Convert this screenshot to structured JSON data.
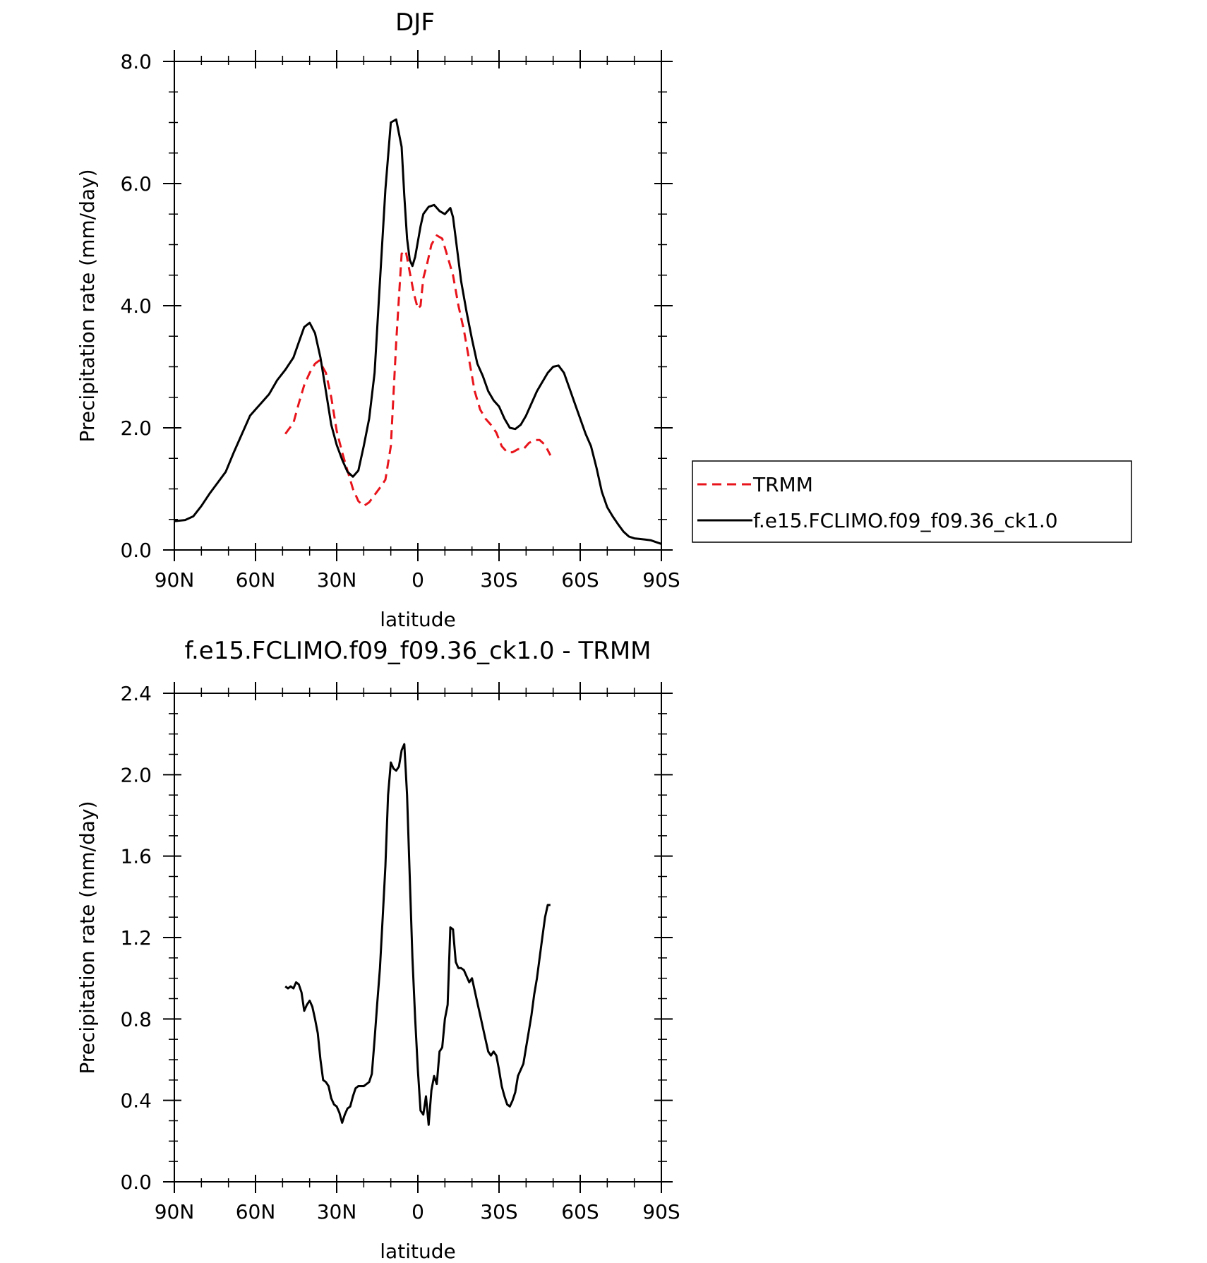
{
  "chart_data": [
    {
      "type": "line",
      "title": "DJF",
      "xlabel": "latitude",
      "ylabel": "Precipitation rate (mm/day)",
      "ylim": [
        0,
        8
      ],
      "xlim": [
        90,
        -90
      ],
      "y_ticks": [
        "0.0",
        "2.0",
        "4.0",
        "6.0",
        "8.0"
      ],
      "x_ticks": [
        "90N",
        "60N",
        "30N",
        "0",
        "30S",
        "60S",
        "90S"
      ],
      "x_tick_values": [
        90,
        60,
        30,
        0,
        -30,
        -60,
        -90
      ],
      "legend": {
        "placement": "right"
      },
      "series": [
        {
          "name": "TRMM",
          "color": "#e8141b",
          "style": "dashed",
          "x": [
            49,
            46,
            44,
            42,
            40,
            38,
            36.5,
            34,
            32,
            30,
            28,
            26,
            24,
            22,
            20,
            18,
            16,
            14,
            12,
            10,
            8,
            6,
            4.5,
            3,
            1.5,
            0,
            -1,
            -2,
            -3.5,
            -5,
            -7,
            -9,
            -11,
            -13,
            -15,
            -17,
            -19,
            -21,
            -23,
            -25,
            -27,
            -29,
            -31,
            -33,
            -35,
            -37,
            -39,
            -41,
            -43,
            -45,
            -47,
            -49
          ],
          "y": [
            1.9,
            2.08,
            2.4,
            2.7,
            2.9,
            3.05,
            3.1,
            2.9,
            2.5,
            1.95,
            1.6,
            1.3,
            1.0,
            0.8,
            0.72,
            0.78,
            0.9,
            1.02,
            1.15,
            1.7,
            3.4,
            4.85,
            4.9,
            4.55,
            4.2,
            3.95,
            4.0,
            4.45,
            4.7,
            5.0,
            5.15,
            5.1,
            4.8,
            4.5,
            4.0,
            3.6,
            3.1,
            2.6,
            2.3,
            2.15,
            2.05,
            1.92,
            1.7,
            1.6,
            1.6,
            1.65,
            1.65,
            1.75,
            1.8,
            1.8,
            1.72,
            1.55
          ]
        },
        {
          "name": "f.e15.FCLIMO.f09_f09.36_ck1.0",
          "color": "#000000",
          "style": "solid",
          "x": [
            90,
            86,
            83,
            80,
            77,
            74,
            71,
            68,
            65,
            62,
            60,
            58,
            55,
            52,
            49,
            46,
            44,
            42,
            40,
            38,
            36,
            34,
            32,
            30,
            28,
            26,
            24,
            22,
            20,
            18,
            16,
            14,
            12,
            10,
            8,
            6,
            5,
            4,
            3,
            2,
            1,
            0,
            -1,
            -2,
            -4,
            -6,
            -8,
            -10,
            -12,
            -13,
            -14,
            -16,
            -18,
            -20,
            -22,
            -24,
            -26,
            -28,
            -30,
            -32,
            -34,
            -36,
            -38,
            -40,
            -42,
            -44,
            -46,
            -48,
            -50,
            -52,
            -54,
            -56,
            -58,
            -60,
            -62,
            -64,
            -66,
            -68,
            -70,
            -72,
            -74,
            -76,
            -78,
            -80,
            -82,
            -84,
            -86,
            -88,
            -90
          ],
          "y": [
            0.47,
            0.49,
            0.55,
            0.72,
            0.92,
            1.1,
            1.28,
            1.6,
            1.9,
            2.2,
            2.3,
            2.4,
            2.55,
            2.78,
            2.95,
            3.15,
            3.4,
            3.65,
            3.72,
            3.55,
            3.15,
            2.6,
            2.05,
            1.72,
            1.48,
            1.28,
            1.2,
            1.3,
            1.7,
            2.15,
            2.9,
            4.4,
            5.9,
            7.0,
            7.05,
            6.6,
            5.8,
            5.1,
            4.75,
            4.65,
            4.8,
            5.05,
            5.3,
            5.5,
            5.62,
            5.65,
            5.55,
            5.5,
            5.6,
            5.45,
            5.1,
            4.4,
            3.9,
            3.45,
            3.05,
            2.85,
            2.6,
            2.45,
            2.35,
            2.15,
            2.0,
            1.98,
            2.05,
            2.2,
            2.4,
            2.6,
            2.75,
            2.9,
            3.0,
            3.02,
            2.9,
            2.65,
            2.4,
            2.15,
            1.9,
            1.7,
            1.35,
            0.95,
            0.7,
            0.55,
            0.42,
            0.3,
            0.22,
            0.19,
            0.18,
            0.17,
            0.16,
            0.13,
            0.1
          ]
        }
      ]
    },
    {
      "type": "line",
      "title": "f.e15.FCLIMO.f09_f09.36_ck1.0 - TRMM",
      "xlabel": "latitude",
      "ylabel": "Precipitation rate (mm/day)",
      "ylim": [
        0,
        2.4
      ],
      "xlim": [
        90,
        -90
      ],
      "y_ticks": [
        "0.0",
        "0.4",
        "0.8",
        "1.2",
        "1.6",
        "2.0",
        "2.4"
      ],
      "x_ticks": [
        "90N",
        "60N",
        "30N",
        "0",
        "30S",
        "60S",
        "90S"
      ],
      "x_tick_values": [
        90,
        60,
        30,
        0,
        -30,
        -60,
        -90
      ],
      "series": [
        {
          "color": "#000000",
          "style": "solid",
          "x": [
            49,
            48,
            47,
            46,
            45,
            44,
            43,
            42,
            41,
            40,
            39,
            38,
            37,
            36,
            35,
            34,
            33,
            32,
            31,
            30,
            29,
            28,
            27,
            26,
            25,
            24,
            23,
            22,
            21,
            20,
            19,
            18,
            17,
            16,
            15,
            14,
            13,
            12,
            11,
            10,
            9,
            8,
            7,
            6,
            5,
            4,
            3,
            2,
            1,
            0,
            -1,
            -2,
            -3,
            -4,
            -5,
            -6,
            -7,
            -8,
            -9,
            -10,
            -11,
            -12,
            -13,
            -14,
            -15,
            -16,
            -17,
            -18,
            -19,
            -20,
            -21,
            -22,
            -23,
            -24,
            -25,
            -26,
            -27,
            -28,
            -29,
            -30,
            -31,
            -32,
            -33,
            -34,
            -35,
            -36,
            -37,
            -38,
            -39,
            -40,
            -41,
            -42,
            -43,
            -44,
            -45,
            -46,
            -47,
            -48,
            -49
          ],
          "y": [
            0.96,
            0.95,
            0.96,
            0.95,
            0.98,
            0.97,
            0.93,
            0.84,
            0.87,
            0.89,
            0.86,
            0.8,
            0.73,
            0.6,
            0.5,
            0.49,
            0.47,
            0.41,
            0.38,
            0.37,
            0.34,
            0.29,
            0.33,
            0.36,
            0.37,
            0.42,
            0.46,
            0.47,
            0.47,
            0.47,
            0.48,
            0.49,
            0.53,
            0.7,
            0.88,
            1.05,
            1.3,
            1.55,
            1.9,
            2.06,
            2.03,
            2.02,
            2.04,
            2.12,
            2.15,
            1.9,
            1.5,
            1.1,
            0.8,
            0.55,
            0.35,
            0.33,
            0.42,
            0.28,
            0.45,
            0.52,
            0.48,
            0.64,
            0.66,
            0.8,
            0.87,
            1.25,
            1.24,
            1.08,
            1.05,
            1.05,
            1.04,
            1.01,
            0.98,
            1.0,
            0.94,
            0.88,
            0.82,
            0.76,
            0.7,
            0.64,
            0.62,
            0.64,
            0.62,
            0.55,
            0.47,
            0.42,
            0.38,
            0.37,
            0.4,
            0.44,
            0.52,
            0.55,
            0.58,
            0.66,
            0.74,
            0.82,
            0.92,
            1.0,
            1.1,
            1.2,
            1.3,
            1.36,
            1.36
          ]
        }
      ]
    }
  ]
}
